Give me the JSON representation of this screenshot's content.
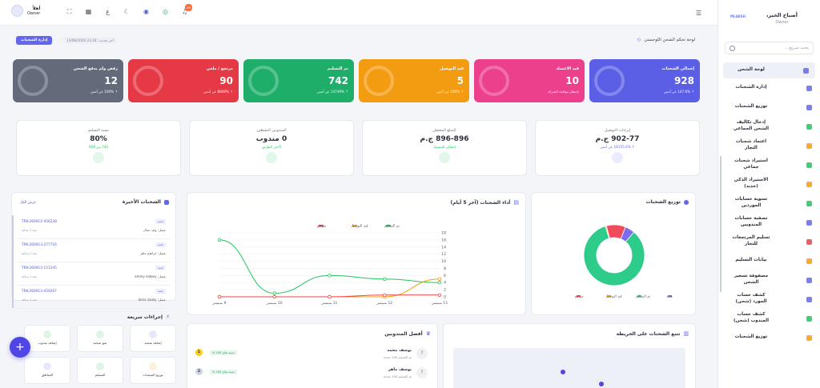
{
  "sidebar": {
    "user_name": "أصباح الخير،",
    "user_role": "Owner",
    "logo_text": "MLAKSH",
    "search_placeholder": "بحث سريع...",
    "items": [
      {
        "label": "لوحة الشحن",
        "color": "#6366f1",
        "active": true
      },
      {
        "label": "إدارة الشحنات",
        "color": "#6366f1"
      },
      {
        "label": "توزيع الشحنات",
        "color": "#6366f1"
      },
      {
        "label": "إدخال تكاليف الشحن الجماعي",
        "color": "#22c55e"
      },
      {
        "label": "اعتماد شحنات التجار",
        "color": "#f59e0b"
      },
      {
        "label": "استيراد شحنات جماعي",
        "color": "#22c55e"
      },
      {
        "label": "الاستيراد الذكي (جديد)",
        "color": "#f59e0b"
      },
      {
        "label": "تسوية حسابات الموردين",
        "color": "#22c55e"
      },
      {
        "label": "تصفية حسابات المندوبين",
        "color": "#6366f1"
      },
      {
        "label": "تسليم المرتجعات للتجار",
        "color": "#ef4444"
      },
      {
        "label": "بيانات التسليم",
        "color": "#f59e0b"
      },
      {
        "label": "مصفوفة تسعير الشحن",
        "color": "#6366f1"
      },
      {
        "label": "كشف حساب المورد (شحن)",
        "color": "#6366f1"
      },
      {
        "label": "كشف حساب المندوب (شحن)",
        "color": "#22c55e"
      },
      {
        "label": "توزيع الشحنات",
        "color": "#f59e0b"
      }
    ]
  },
  "topbar": {
    "user_name": "أهلاً",
    "user_role": "Owner",
    "notif_count": "99",
    "lang": "ع"
  },
  "header": {
    "title": "لوحة تحكم الشحن اللوجستي",
    "updated": "آخر تحديث: 23:18 13/08/2026",
    "manage_button": "إدارة الشحنات"
  },
  "cards": [
    {
      "title": "إجمالي الشحنات",
      "value": "928",
      "sub": "↑ 147.6% عن أمس",
      "color": "#5b5fe6"
    },
    {
      "title": "قيد الاعتماد",
      "value": "10",
      "sub": "بانتظار موافقة الشركة",
      "color": "#ec3f8c"
    },
    {
      "title": "قيد التوصيل",
      "value": "5",
      "sub": "↑ 100% عن أمس",
      "color": "#f39c12"
    },
    {
      "title": "تم التسليم",
      "value": "742",
      "sub": "↑ 14749% عن أمس",
      "color": "#1fae6a"
    },
    {
      "title": "مرتجع / ملغي",
      "value": "90",
      "sub": "↑ 8800% عن أمس",
      "color": "#e53945"
    },
    {
      "title": "رفض ولم يدفع الشحن",
      "value": "12",
      "sub": "↑ 100% عن أمس",
      "color": "#636b7b"
    }
  ],
  "stats": [
    {
      "label": "إيرادات التوصيل",
      "value": "902-77 ج.م",
      "sub": "↑ 16155.4% عن أمس",
      "color": "#6366f1"
    },
    {
      "label": "المبلغ المحصل",
      "value": "896-896 ج.م",
      "sub": "إجمالي التحصيل",
      "color": "#22c55e"
    },
    {
      "label": "المندوبين النشطين",
      "value": "0 مندوب",
      "sub": "0 في الطريق",
      "color": "#22c55e"
    },
    {
      "label": "نسبة التسليم",
      "value": "80%",
      "sub": "742 من 928",
      "color": "#22c55e"
    }
  ],
  "recent": {
    "title": "الشحنات الأخيرة",
    "view_all": "عرض الكل",
    "rows": [
      {
        "id": "TRK-260912-456228",
        "tag": "جديد",
        "client": "عميل: وليد جمال",
        "time": "منذ 1 ساعة"
      },
      {
        "id": "TRK-260913-277716",
        "tag": "جديد",
        "client": "عميل: ابراهيم ماهر",
        "time": "منذ 1 ساعة"
      },
      {
        "id": "TRK-260913-151345",
        "tag": "جديد",
        "client": "عميل: ammy elaboy",
        "time": "منذ 1 ساعة"
      },
      {
        "id": "TRK-260913-459267",
        "tag": "جديد",
        "client": "عميل: dena zaaky",
        "time": "منذ 1 ساعة"
      }
    ]
  },
  "quick": {
    "title": "إجراءات سريعة",
    "items": [
      {
        "label": "إضافة شحنة",
        "color": "#6366f1"
      },
      {
        "label": "تتبع شحنة",
        "color": "#22c55e"
      },
      {
        "label": "إضافة مندوب",
        "color": "#22c55e"
      },
      {
        "label": "توزيع الشحنات",
        "color": "#f59e0b"
      },
      {
        "label": "المسلم",
        "color": "#22c55e"
      },
      {
        "label": "المناطق",
        "color": "#6366f1"
      }
    ]
  },
  "perf": {
    "title": "أداء الشحنات (آخر 5 أيام)",
    "legend": [
      "تم التسليم",
      "قيد التوصيل",
      "مرتجع"
    ]
  },
  "dist": {
    "title": "توزيع الشحنات",
    "legend": [
      "جديد",
      "تم التسليم",
      "قيد التوصيل",
      "مرتجع"
    ]
  },
  "map": {
    "title": "تتبع الشحنات على الخريطة"
  },
  "top": {
    "title": "أفضل المندوبين",
    "rows": [
      {
        "name": "يوسف محمد",
        "desc": "تم التسليم 100 شحنة",
        "rate": "نسبة نجاح 100 %",
        "rank": "1",
        "rank_color": "#facc15"
      },
      {
        "name": "يوسف ماهر",
        "desc": "تم التسليم 100 شحنة",
        "rate": "نسبة نجاح 100 %",
        "rank": "2",
        "rank_color": "#cbd5e1"
      }
    ]
  },
  "chart_data": [
    {
      "type": "line",
      "title": "أداء الشحنات (آخر 5 أيام)",
      "categories": [
        "9 سبتمبر",
        "10 سبتمبر",
        "11 سبتمبر",
        "12 سبتمبر",
        "13 سبتمبر"
      ],
      "ylim": [
        0,
        18
      ],
      "yticks": [
        0,
        2,
        4,
        6,
        8,
        10,
        12,
        14,
        16,
        18
      ],
      "series": [
        {
          "name": "تم التسليم",
          "color": "#22c55e",
          "values": [
            16,
            1,
            6,
            5,
            4
          ]
        },
        {
          "name": "قيد التوصيل",
          "color": "#f59e0b",
          "values": [
            0,
            0,
            0,
            0,
            5
          ]
        },
        {
          "name": "مرتجع",
          "color": "#ef4444",
          "values": [
            0,
            0,
            0,
            0.5,
            0.5
          ]
        }
      ]
    },
    {
      "type": "pie",
      "title": "توزيع الشحنات",
      "labels": [
        "جديد",
        "تم التسليم",
        "قيد التوصيل",
        "مرتجع"
      ],
      "values": [
        46,
        742,
        5,
        90
      ],
      "colors": [
        "#7c6cf0",
        "#2ecc8a",
        "#f59e0b",
        "#ef4b5a"
      ]
    }
  ]
}
